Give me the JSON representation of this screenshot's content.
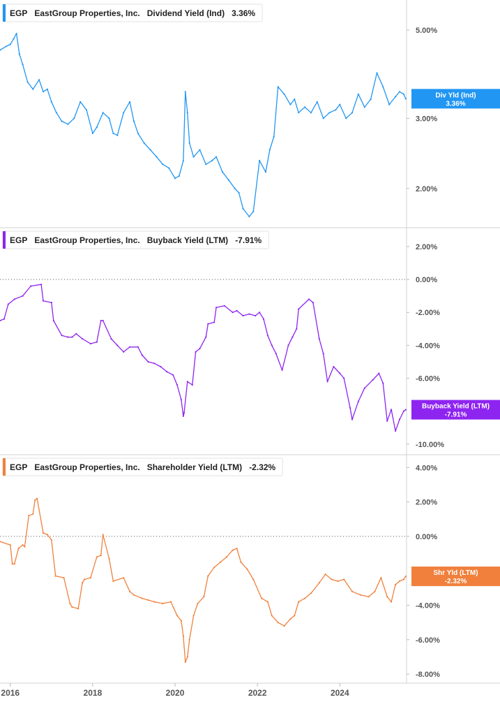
{
  "chart_data": [
    {
      "type": "line",
      "ticker": "EGP",
      "company": "EastGroup Properties, Inc.",
      "metric": "Dividend Yield (Ind)",
      "current_value": "3.36%",
      "tag_label": "Div Yld (Ind)",
      "tag_value": "3.36%",
      "color": "#2196f3",
      "ylim": [
        1.6,
        5.9
      ],
      "y_scale": "log",
      "yticks": [
        2,
        3,
        5
      ],
      "ytick_labels": [
        "2.00%",
        "3.00%",
        "5.00%"
      ],
      "zero_line": false,
      "series": [
        {
          "x": [
            2015.75,
            2015.9,
            2016.0,
            2016.08,
            2016.15,
            2016.22,
            2016.3,
            2016.42,
            2016.55,
            2016.7,
            2016.8,
            2016.9,
            2017.0,
            2017.12,
            2017.25,
            2017.4,
            2017.55,
            2017.7,
            2017.85,
            2018.0,
            2018.1,
            2018.25,
            2018.4,
            2018.5,
            2018.6,
            2018.75,
            2018.9,
            2019.0,
            2019.1,
            2019.25,
            2019.4,
            2019.55,
            2019.7,
            2019.85,
            2020.0,
            2020.1,
            2020.2,
            2020.25,
            2020.3,
            2020.35,
            2020.45,
            2020.6,
            2020.75,
            2020.9,
            2021.0,
            2021.15,
            2021.3,
            2021.45,
            2021.55,
            2021.65,
            2021.8,
            2021.9,
            2022.05,
            2022.2,
            2022.3,
            2022.4,
            2022.5,
            2022.65,
            2022.8,
            2022.9,
            2023.0,
            2023.15,
            2023.3,
            2023.45,
            2023.6,
            2023.75,
            2023.9,
            2024.0,
            2024.15,
            2024.3,
            2024.45,
            2024.6,
            2024.75,
            2024.9,
            2025.05,
            2025.2,
            2025.35,
            2025.45,
            2025.55,
            2025.6
          ],
          "values": [
            4.45,
            4.55,
            4.6,
            4.75,
            4.9,
            4.35,
            4.1,
            3.7,
            3.55,
            3.75,
            3.5,
            3.55,
            3.3,
            3.1,
            2.95,
            2.9,
            3.0,
            3.3,
            3.15,
            2.75,
            2.85,
            3.1,
            3.0,
            2.75,
            2.72,
            3.1,
            3.3,
            2.95,
            2.75,
            2.6,
            2.5,
            2.4,
            2.3,
            2.25,
            2.12,
            2.15,
            2.35,
            3.5,
            3.1,
            2.6,
            2.4,
            2.5,
            2.3,
            2.35,
            2.4,
            2.2,
            2.1,
            2.0,
            1.95,
            1.78,
            1.7,
            1.75,
            2.35,
            2.2,
            2.5,
            2.7,
            3.6,
            3.45,
            3.25,
            3.35,
            3.1,
            3.2,
            3.1,
            3.3,
            3.0,
            3.1,
            3.15,
            3.25,
            3.0,
            3.1,
            3.45,
            3.2,
            3.35,
            3.9,
            3.6,
            3.25,
            3.4,
            3.5,
            3.45,
            3.36
          ]
        }
      ]
    },
    {
      "type": "line",
      "ticker": "EGP",
      "company": "EastGroup Properties, Inc.",
      "metric": "Buyback Yield (LTM)",
      "current_value": "-7.91%",
      "tag_label": "Buyback Yield (LTM)",
      "tag_value": "-7.91%",
      "color": "#8e24f0",
      "ylim": [
        -10.6,
        3.1
      ],
      "y_scale": "linear",
      "yticks": [
        2,
        0,
        -2,
        -4,
        -6,
        -10
      ],
      "ytick_labels": [
        "2.00%",
        "0.00%",
        "-2.00%",
        "-4.00%",
        "-6.00%",
        "-10.00%"
      ],
      "zero_line": true,
      "series": [
        {
          "x": [
            2015.75,
            2015.85,
            2015.95,
            2016.1,
            2016.3,
            2016.5,
            2016.75,
            2016.8,
            2017.0,
            2017.05,
            2017.25,
            2017.4,
            2017.5,
            2017.6,
            2017.75,
            2017.95,
            2018.1,
            2018.2,
            2018.25,
            2018.45,
            2018.6,
            2018.75,
            2018.9,
            2019.1,
            2019.2,
            2019.35,
            2019.5,
            2019.65,
            2019.8,
            2019.95,
            2020.05,
            2020.15,
            2020.2,
            2020.22,
            2020.3,
            2020.42,
            2020.5,
            2020.6,
            2020.75,
            2020.8,
            2020.95,
            2021.0,
            2021.2,
            2021.4,
            2021.5,
            2021.65,
            2021.8,
            2021.95,
            2022.05,
            2022.15,
            2022.25,
            2022.35,
            2022.45,
            2022.6,
            2022.75,
            2022.85,
            2022.95,
            2023.0,
            2023.25,
            2023.35,
            2023.5,
            2023.6,
            2023.7,
            2023.85,
            2024.0,
            2024.1,
            2024.25,
            2024.3,
            2024.45,
            2024.6,
            2024.8,
            2024.95,
            2025.05,
            2025.15,
            2025.25,
            2025.35,
            2025.45,
            2025.55,
            2025.6
          ],
          "values": [
            -2.5,
            -2.4,
            -1.5,
            -1.2,
            -1.0,
            -0.4,
            -0.3,
            -1.3,
            -1.4,
            -2.5,
            -3.4,
            -3.5,
            -3.5,
            -3.3,
            -3.6,
            -3.9,
            -3.8,
            -2.5,
            -2.5,
            -3.6,
            -4.0,
            -4.4,
            -4.1,
            -4.1,
            -4.6,
            -5.0,
            -5.1,
            -5.3,
            -5.6,
            -5.8,
            -6.4,
            -7.3,
            -8.3,
            -8.1,
            -6.2,
            -6.4,
            -4.4,
            -4.2,
            -3.5,
            -2.7,
            -2.6,
            -1.7,
            -1.6,
            -2.0,
            -1.9,
            -2.2,
            -2.1,
            -2.2,
            -2.0,
            -2.4,
            -3.4,
            -4.0,
            -4.5,
            -5.5,
            -4.0,
            -3.5,
            -3.0,
            -1.8,
            -1.2,
            -1.4,
            -3.6,
            -4.5,
            -6.2,
            -5.3,
            -5.7,
            -6.0,
            -7.8,
            -8.5,
            -7.4,
            -6.6,
            -6.1,
            -5.7,
            -6.3,
            -8.6,
            -7.9,
            -9.2,
            -8.5,
            -8.0,
            -7.91
          ]
        }
      ]
    },
    {
      "type": "line",
      "ticker": "EGP",
      "company": "EastGroup Properties, Inc.",
      "metric": "Shareholder Yield (LTM)",
      "current_value": "-2.32%",
      "tag_label": "Shr Yld (LTM)",
      "tag_value": "-2.32%",
      "color": "#f0803c",
      "ylim": [
        -8.4,
        4.7
      ],
      "y_scale": "linear",
      "yticks": [
        4,
        2,
        0,
        -4,
        -6,
        -8
      ],
      "ytick_labels": [
        "4.00%",
        "2.00%",
        "0.00%",
        "-4.00%",
        "-6.00%",
        "-8.00%"
      ],
      "zero_line": true,
      "series": [
        {
          "x": [
            2015.75,
            2016.0,
            2016.05,
            2016.1,
            2016.2,
            2016.3,
            2016.35,
            2016.45,
            2016.55,
            2016.6,
            2016.65,
            2016.8,
            2016.9,
            2017.0,
            2017.1,
            2017.3,
            2017.45,
            2017.5,
            2017.65,
            2017.75,
            2017.8,
            2017.95,
            2018.1,
            2018.2,
            2018.25,
            2018.4,
            2018.5,
            2018.75,
            2018.9,
            2019.0,
            2019.2,
            2019.35,
            2019.5,
            2019.7,
            2019.9,
            2020.05,
            2020.15,
            2020.2,
            2020.25,
            2020.3,
            2020.35,
            2020.45,
            2020.55,
            2020.7,
            2020.8,
            2020.95,
            2021.1,
            2021.25,
            2021.4,
            2021.5,
            2021.6,
            2021.75,
            2021.9,
            2022.1,
            2022.25,
            2022.35,
            2022.5,
            2022.65,
            2022.8,
            2022.9,
            2023.0,
            2023.15,
            2023.3,
            2023.5,
            2023.65,
            2023.8,
            2023.95,
            2024.1,
            2024.3,
            2024.5,
            2024.7,
            2024.85,
            2025.0,
            2025.15,
            2025.25,
            2025.35,
            2025.45,
            2025.55,
            2025.6
          ],
          "values": [
            -0.3,
            -0.5,
            -1.6,
            -1.6,
            -0.7,
            -0.5,
            -0.6,
            1.2,
            1.3,
            2.1,
            2.2,
            0.2,
            0.1,
            -0.2,
            -2.3,
            -2.4,
            -3.9,
            -4.1,
            -4.2,
            -2.7,
            -2.5,
            -2.4,
            -1.2,
            -1.1,
            0.1,
            -1.3,
            -2.6,
            -2.4,
            -3.2,
            -3.4,
            -3.6,
            -3.7,
            -3.8,
            -3.9,
            -3.8,
            -4.6,
            -4.9,
            -5.8,
            -7.3,
            -7.0,
            -6.0,
            -4.6,
            -3.9,
            -3.5,
            -2.3,
            -1.8,
            -1.5,
            -1.2,
            -0.8,
            -0.7,
            -1.5,
            -1.9,
            -2.5,
            -3.6,
            -3.8,
            -4.6,
            -5.0,
            -5.2,
            -4.8,
            -4.6,
            -3.8,
            -3.6,
            -3.3,
            -2.7,
            -2.2,
            -2.5,
            -2.6,
            -2.5,
            -3.2,
            -3.4,
            -3.5,
            -3.2,
            -2.4,
            -3.5,
            -3.8,
            -2.8,
            -2.6,
            -2.5,
            -2.32
          ]
        }
      ]
    }
  ],
  "x_axis": {
    "domain": [
      2015.75,
      2025.62
    ],
    "ticks": [
      2016,
      2018,
      2020,
      2022,
      2024
    ],
    "tick_labels": [
      "2016",
      "2018",
      "2020",
      "2022",
      "2024"
    ]
  }
}
